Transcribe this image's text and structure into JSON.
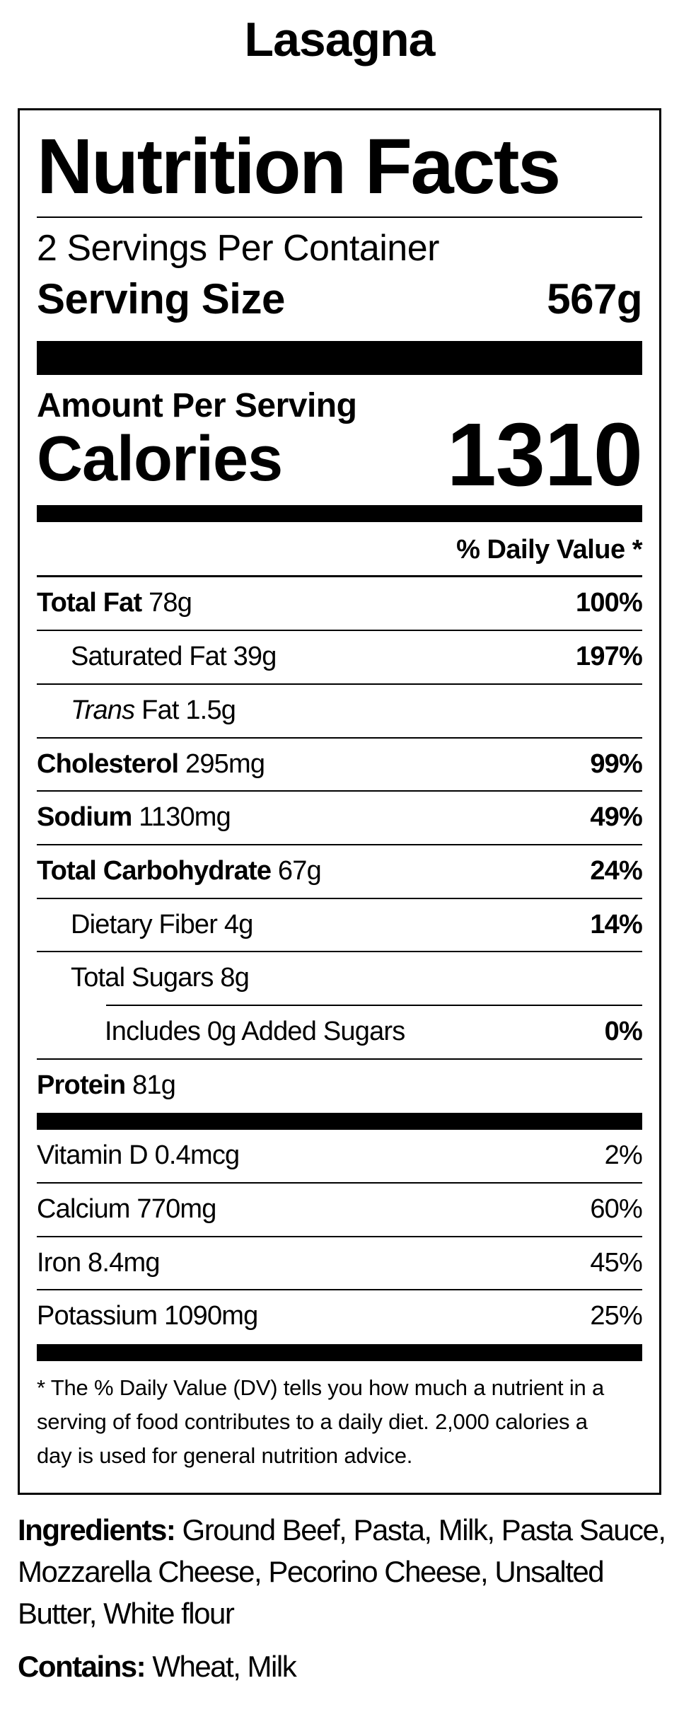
{
  "colors": {
    "text": "#000000",
    "background": "#ffffff"
  },
  "page_title": "Lasagna",
  "label": {
    "heading": "Nutrition Facts",
    "servings_per_container": "2 Servings Per Container",
    "serving_size_label": "Serving Size",
    "serving_size_value": "567g",
    "amount_per_serving": "Amount Per Serving",
    "calories_label": "Calories",
    "calories_value": "1310",
    "daily_value_header": "% Daily Value *",
    "nutrients": [
      {
        "bold": "Total Fat",
        "rest": " 78g",
        "pct": "100%"
      },
      {
        "rest": "Saturated Fat 39g",
        "pct": "197%"
      },
      {
        "italic": "Trans",
        "rest": " Fat 1.5g"
      },
      {
        "bold": "Cholesterol",
        "rest": " 295mg",
        "pct": "99%"
      },
      {
        "bold": "Sodium",
        "rest": " 1130mg",
        "pct": "49%"
      },
      {
        "bold": "Total Carbohydrate",
        "rest": " 67g",
        "pct": "24%"
      },
      {
        "rest": "Dietary Fiber 4g",
        "pct": "14%"
      },
      {
        "rest": "Total Sugars 8g"
      },
      {
        "rest": "Includes 0g Added Sugars",
        "pct": "0%"
      },
      {
        "bold": "Protein",
        "rest": " 81g"
      }
    ],
    "vitamins": [
      {
        "text": "Vitamin D 0.4mcg",
        "pct": "2%"
      },
      {
        "text": "Calcium 770mg",
        "pct": "60%"
      },
      {
        "text": "Iron 8.4mg",
        "pct": "45%"
      },
      {
        "text": "Potassium 1090mg",
        "pct": "25%"
      }
    ],
    "footnote_lines": [
      "* The % Daily Value (DV) tells you how much a nutrient in a",
      "serving of food contributes to a daily diet. 2,000 calories a",
      "day is used for general nutrition advice."
    ]
  },
  "ingredients": {
    "label": "Ingredients:",
    "lines": [
      " Ground Beef, Pasta, Milk, Pasta Sauce,",
      "Mozzarella Cheese, Pecorino Cheese, Unsalted",
      "Butter, White flour"
    ]
  },
  "contains": {
    "label": "Contains:",
    "value": " Wheat, Milk"
  }
}
